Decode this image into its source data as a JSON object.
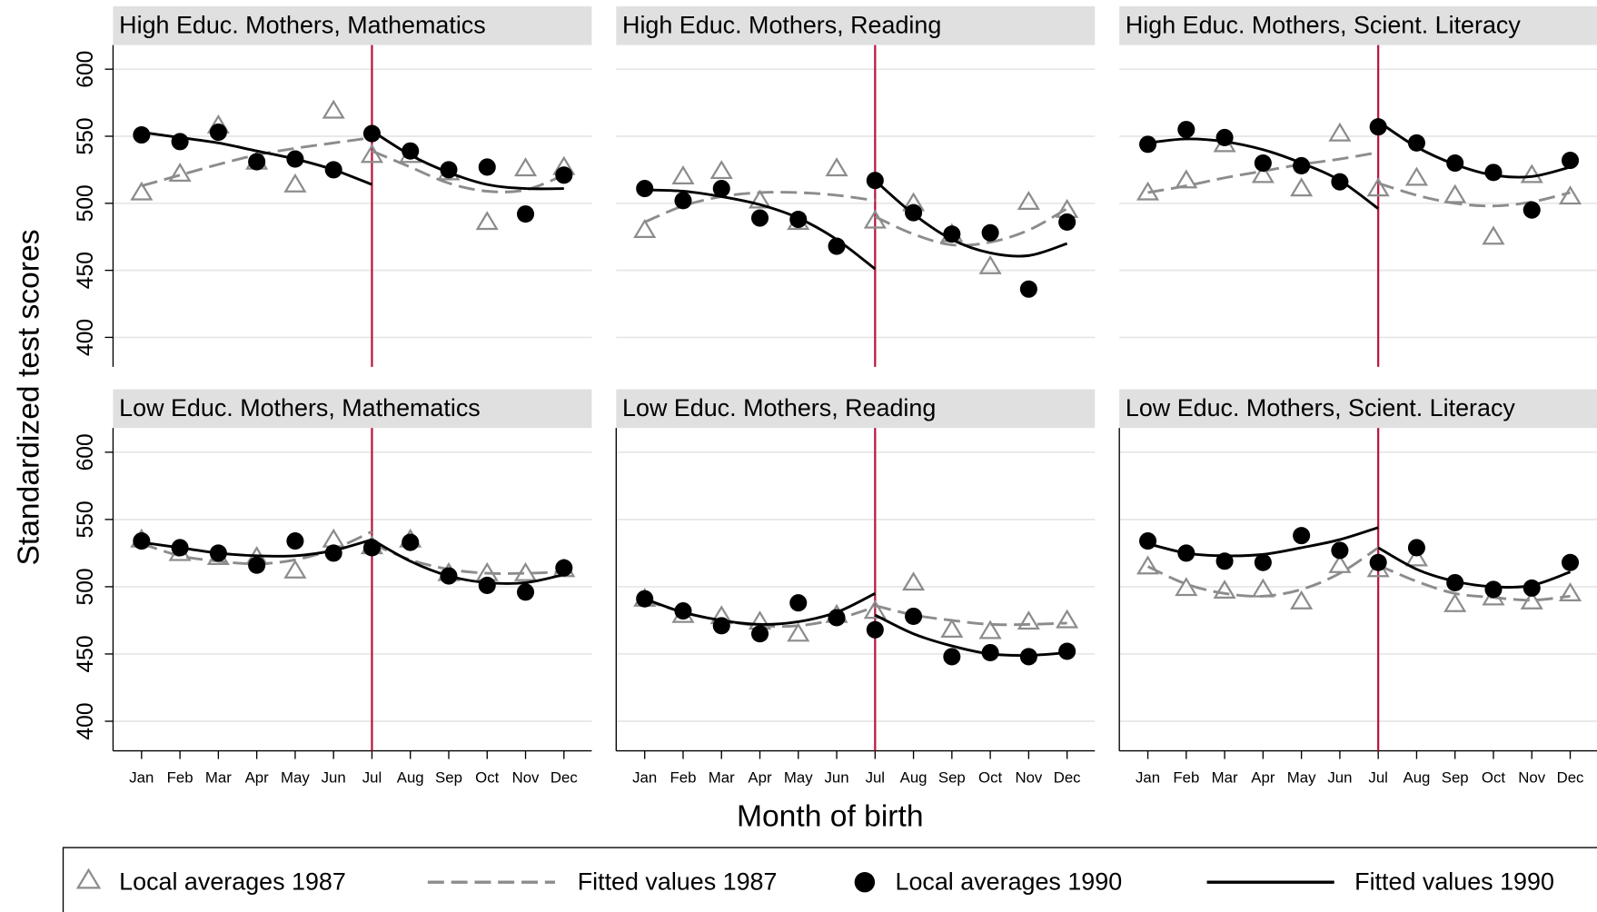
{
  "chart_data": {
    "type": "line",
    "y_label": "Standardized test scores",
    "x_label": "Month of birth",
    "categories": [
      "Jan",
      "Feb",
      "Mar",
      "Apr",
      "May",
      "Jun",
      "Jul",
      "Aug",
      "Sep",
      "Oct",
      "Nov",
      "Dec"
    ],
    "ylim": [
      378,
      618
    ],
    "yticks": [
      400,
      450,
      500,
      550,
      600
    ],
    "grid": true,
    "cutoff_category": "Jul",
    "cutoff_color": "#b8163c",
    "legend": "bottom",
    "series": [
      {
        "name": "Local averages 1987",
        "color": "#8c8c8c",
        "marker": "triangle"
      },
      {
        "name": "Fitted values 1987",
        "color": "#8c8c8c",
        "dash": true
      },
      {
        "name": "Local averages 1990",
        "color": "#000000",
        "marker": "circle"
      },
      {
        "name": "Fitted values 1990",
        "color": "#000000",
        "dash": false
      }
    ],
    "panels": [
      {
        "title": "High Educ. Mothers, Mathematics",
        "values": [
          [
            508,
            522,
            558,
            531,
            514,
            569,
            536,
            536,
            523,
            486,
            526,
            527
          ],
          [
            [
              513,
              521,
              529,
              536,
              541,
              545,
              549
            ],
            [
              539,
              527,
              515,
              509,
              510,
              521
            ]
          ],
          [
            551,
            546,
            553,
            531,
            533,
            525,
            552,
            539,
            525,
            527,
            492,
            521
          ],
          [
            [
              553,
              549,
              545,
              539,
              533,
              525,
              514
            ],
            [
              554,
              536,
              523,
              514,
              511,
              511
            ]
          ]
        ]
      },
      {
        "title": "High Educ. Mothers, Reading",
        "values": [
          [
            480,
            520,
            524,
            502,
            486,
            526,
            487,
            500,
            477,
            453,
            501,
            495
          ],
          [
            [
              486,
              498,
              505,
              508,
              508,
              506,
              502
            ],
            [
              490,
              477,
              469,
              471,
              480,
              496
            ]
          ],
          [
            511,
            502,
            511,
            489,
            488,
            468,
            517,
            493,
            477,
            478,
            436,
            486
          ],
          [
            [
              510,
              509,
              505,
              499,
              489,
              473,
              451
            ],
            [
              517,
              492,
              473,
              463,
              461,
              470
            ]
          ]
        ]
      },
      {
        "title": "High Educ. Mothers, Scient. Literacy",
        "values": [
          [
            508,
            517,
            544,
            521,
            511,
            552,
            511,
            519,
            506,
            475,
            521,
            505
          ],
          [
            [
              508,
              513,
              519,
              524,
              529,
              533,
              538
            ],
            [
              515,
              506,
              500,
              498,
              501,
              508
            ]
          ],
          [
            544,
            555,
            549,
            530,
            528,
            516,
            557,
            545,
            530,
            523,
            495,
            532
          ],
          [
            [
              545,
              548,
              546,
              540,
              530,
              517,
              496
            ],
            [
              561,
              542,
              529,
              521,
              520,
              527
            ]
          ]
        ]
      },
      {
        "title": "Low Educ. Mothers, Mathematics",
        "values": [
          [
            535,
            525,
            522,
            522,
            512,
            535,
            530,
            535,
            510,
            510,
            510,
            513
          ],
          [
            [
              532,
              523,
              519,
              517,
              520,
              528,
              541
            ],
            [
              532,
              520,
              513,
              510,
              510,
              511
            ]
          ],
          [
            534,
            529,
            525,
            516,
            534,
            525,
            529,
            533,
            508,
            501,
            496,
            514
          ],
          [
            [
              533,
              529,
              525,
              523,
              523,
              527,
              535
            ],
            [
              535,
              519,
              508,
              503,
              503,
              509
            ]
          ]
        ]
      },
      {
        "title": "Low Educ. Mothers, Reading",
        "values": [
          [
            491,
            479,
            478,
            474,
            465,
            479,
            482,
            503,
            468,
            467,
            474,
            475
          ],
          [
            [
              490,
              481,
              475,
              471,
              471,
              476,
              485
            ],
            [
              486,
              479,
              475,
              472,
              472,
              473
            ]
          ],
          [
            491,
            482,
            471,
            465,
            488,
            477,
            468,
            478,
            448,
            451,
            448,
            452
          ],
          [
            [
              491,
              481,
              475,
              472,
              474,
              481,
              495
            ],
            [
              479,
              465,
              456,
              450,
              449,
              451
            ]
          ]
        ]
      },
      {
        "title": "Low Educ. Mothers, Scient. Literacy",
        "values": [
          [
            515,
            499,
            497,
            498,
            489,
            516,
            513,
            521,
            487,
            492,
            489,
            495
          ],
          [
            [
              515,
              502,
              495,
              493,
              498,
              510,
              529
            ],
            [
              516,
              504,
              495,
              492,
              490,
              493
            ]
          ],
          [
            534,
            525,
            519,
            518,
            538,
            527,
            518,
            529,
            503,
            498,
            499,
            518
          ],
          [
            [
              532,
              525,
              523,
              524,
              529,
              535,
              544
            ],
            [
              529,
              513,
              504,
              500,
              501,
              511
            ]
          ]
        ]
      }
    ]
  }
}
